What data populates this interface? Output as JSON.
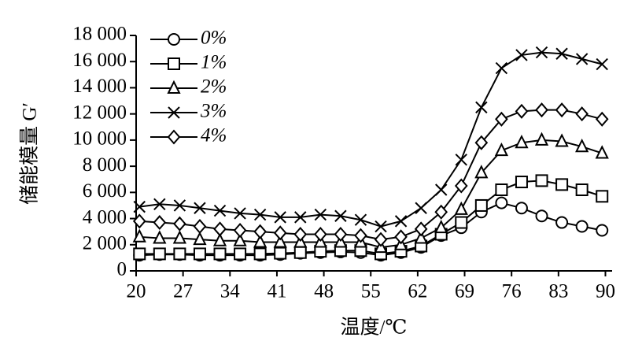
{
  "chart_data": {
    "type": "line",
    "x_label": "温度/℃",
    "y_label": "储能模量 G′",
    "x": [
      20.5,
      23.5,
      26.5,
      29.5,
      32.5,
      35.5,
      38.5,
      41.5,
      44.5,
      47.5,
      50.5,
      53.5,
      56.5,
      59.5,
      62.5,
      65.5,
      68.5,
      71.5,
      74.5,
      77.5,
      80.5,
      83.5,
      86.5,
      89.5
    ],
    "series": [
      {
        "name": "0%",
        "color": "#000000",
        "marker": "circle",
        "values": [
          1200,
          1250,
          1250,
          1200,
          1200,
          1200,
          1200,
          1250,
          1350,
          1400,
          1450,
          1400,
          1200,
          1400,
          1800,
          2700,
          3300,
          4500,
          5200,
          4800,
          4200,
          3700,
          3400,
          3100
        ]
      },
      {
        "name": "1%",
        "color": "#000000",
        "marker": "square",
        "values": [
          1300,
          1300,
          1300,
          1300,
          1300,
          1300,
          1300,
          1350,
          1400,
          1500,
          1550,
          1550,
          1300,
          1500,
          1900,
          2800,
          3700,
          5000,
          6200,
          6800,
          6900,
          6600,
          6200,
          5700
        ]
      },
      {
        "name": "2%",
        "color": "#000000",
        "marker": "triangle",
        "values": [
          2600,
          2500,
          2500,
          2400,
          2300,
          2300,
          2200,
          2200,
          2200,
          2200,
          2200,
          2200,
          1800,
          2000,
          2500,
          3300,
          4700,
          7500,
          9200,
          9800,
          10000,
          9900,
          9500,
          9000
        ]
      },
      {
        "name": "3%",
        "color": "#000000",
        "marker": "cross",
        "values": [
          4900,
          5100,
          5000,
          4800,
          4600,
          4400,
          4300,
          4100,
          4100,
          4300,
          4200,
          3900,
          3400,
          3800,
          4800,
          6200,
          8500,
          12500,
          15500,
          16500,
          16700,
          16600,
          16200,
          15800
        ]
      },
      {
        "name": "4%",
        "color": "#000000",
        "marker": "diamond",
        "values": [
          3800,
          3700,
          3600,
          3400,
          3200,
          3100,
          3000,
          2900,
          2800,
          2800,
          2800,
          2700,
          2400,
          2600,
          3200,
          4500,
          6500,
          9800,
          11600,
          12200,
          12300,
          12300,
          12000,
          11600
        ]
      }
    ],
    "xlim": [
      20,
      91
    ],
    "xticks": [
      20,
      27,
      34,
      41,
      48,
      55,
      62,
      69,
      76,
      83,
      90
    ],
    "ylim": [
      0,
      18000
    ],
    "yticks": [
      0,
      {
        "value": 2000,
        "label": "2 000"
      },
      {
        "value": 4000,
        "label": "4 000"
      },
      {
        "value": 6000,
        "label": "6 000"
      },
      {
        "value": 8000,
        "label": "8 000"
      },
      {
        "value": 10000,
        "label": "10 000"
      },
      {
        "value": 12000,
        "label": "12 000"
      },
      {
        "value": 14000,
        "label": "14 000"
      },
      {
        "value": 16000,
        "label": "16 000"
      },
      {
        "value": 18000,
        "label": "18 000"
      }
    ],
    "grid": false,
    "legend": "upper left"
  }
}
